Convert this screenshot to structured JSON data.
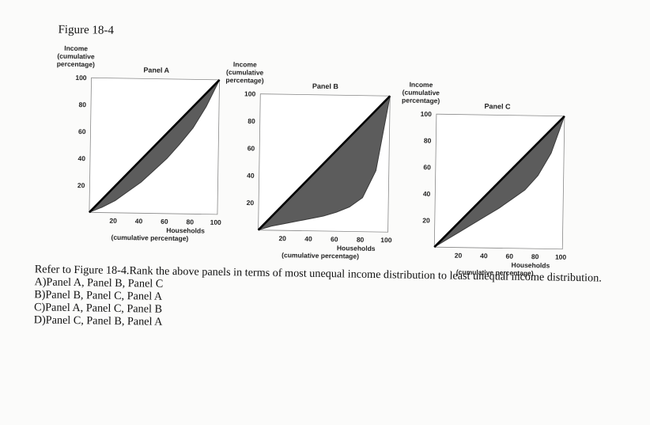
{
  "figure_label": "Figure 18-4",
  "question": "Refer to Figure 18-4.Rank the above panels in terms of most unequal income distribution to least unequal income distribution.",
  "options": [
    "A)Panel A, Panel B, Panel C",
    "B)Panel B, Panel C, Panel A",
    "C)Panel A, Panel C, Panel B",
    "D)Panel C, Panel B, Panel A"
  ],
  "colors": {
    "shade": "#5c5c5c",
    "line": "#000000"
  },
  "chart_data": [
    {
      "type": "area",
      "title": "Panel A",
      "ylabel": [
        "Income",
        "(cumulative",
        "percentage)"
      ],
      "xlabel": [
        "Households",
        "(cumulative percentage)"
      ],
      "xlim": [
        0,
        100
      ],
      "ylim": [
        0,
        100
      ],
      "xticks": [
        "20",
        "40",
        "60",
        "80",
        "100"
      ],
      "yticks": [
        "20",
        "40",
        "60",
        "80",
        "100"
      ],
      "series": [
        {
          "x": [
            0,
            100
          ],
          "y": [
            0,
            100
          ]
        },
        {
          "x": [
            0,
            10,
            20,
            30,
            40,
            50,
            60,
            70,
            80,
            90,
            100
          ],
          "y": [
            0,
            4,
            9,
            16,
            23,
            32,
            41,
            52,
            64,
            80,
            100
          ]
        }
      ]
    },
    {
      "type": "area",
      "title": "Panel B",
      "ylabel": [
        "Income",
        "(cumulative",
        "percentage)"
      ],
      "xlabel": [
        "Households",
        "(cumulative percentage)"
      ],
      "xlim": [
        0,
        100
      ],
      "ylim": [
        0,
        100
      ],
      "xticks": [
        "20",
        "40",
        "60",
        "80",
        "100"
      ],
      "yticks": [
        "20",
        "40",
        "60",
        "80",
        "100"
      ],
      "series": [
        {
          "x": [
            0,
            100
          ],
          "y": [
            0,
            100
          ]
        },
        {
          "x": [
            0,
            10,
            20,
            30,
            40,
            50,
            60,
            70,
            80,
            90,
            100
          ],
          "y": [
            0,
            3,
            5,
            7,
            9,
            11,
            14,
            18,
            25,
            45,
            100
          ]
        }
      ]
    },
    {
      "type": "area",
      "title": "Panel C",
      "ylabel": [
        "Income",
        "(cumulative",
        "percentage)"
      ],
      "xlabel": [
        "Households",
        "(cumulative percentage)"
      ],
      "xlim": [
        0,
        100
      ],
      "ylim": [
        0,
        100
      ],
      "xticks": [
        "20",
        "40",
        "60",
        "80",
        "100"
      ],
      "yticks": [
        "20",
        "40",
        "60",
        "80",
        "100"
      ],
      "series": [
        {
          "x": [
            0,
            100
          ],
          "y": [
            0,
            100
          ]
        },
        {
          "x": [
            0,
            10,
            20,
            30,
            40,
            50,
            60,
            70,
            80,
            90,
            100
          ],
          "y": [
            0,
            6,
            12,
            18,
            24,
            30,
            37,
            44,
            55,
            72,
            100
          ]
        }
      ]
    }
  ]
}
